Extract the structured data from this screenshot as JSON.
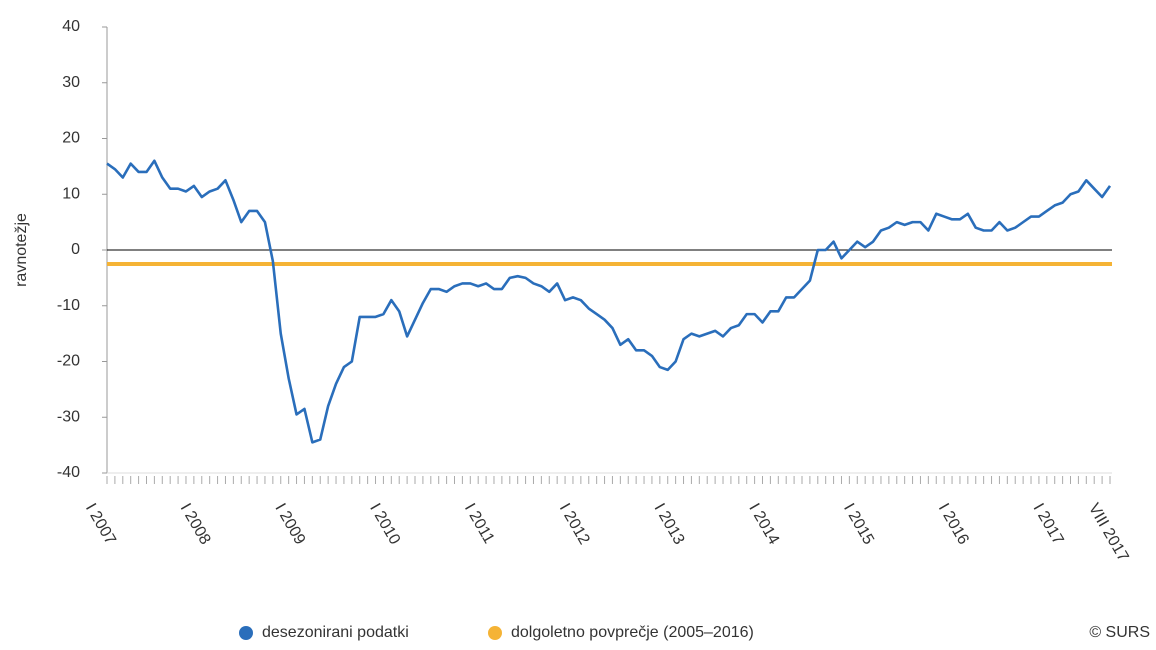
{
  "chart_data": {
    "type": "line",
    "y_label": "ravnotežje",
    "categories": [
      "I 2007",
      null,
      null,
      null,
      null,
      null,
      null,
      null,
      null,
      null,
      null,
      null,
      "I 2008",
      null,
      null,
      null,
      null,
      null,
      null,
      null,
      null,
      null,
      null,
      null,
      "I 2009",
      null,
      null,
      null,
      null,
      null,
      null,
      null,
      null,
      null,
      null,
      null,
      "I 2010",
      null,
      null,
      null,
      null,
      null,
      null,
      null,
      null,
      null,
      null,
      null,
      "I 2011",
      null,
      null,
      null,
      null,
      null,
      null,
      null,
      null,
      null,
      null,
      null,
      "I 2012",
      null,
      null,
      null,
      null,
      null,
      null,
      null,
      null,
      null,
      null,
      null,
      "I 2013",
      null,
      null,
      null,
      null,
      null,
      null,
      null,
      null,
      null,
      null,
      null,
      "I 2014",
      null,
      null,
      null,
      null,
      null,
      null,
      null,
      null,
      null,
      null,
      null,
      "I 2015",
      null,
      null,
      null,
      null,
      null,
      null,
      null,
      null,
      null,
      null,
      null,
      "I 2016",
      null,
      null,
      null,
      null,
      null,
      null,
      null,
      null,
      null,
      null,
      null,
      "I 2017",
      null,
      null,
      null,
      null,
      null,
      null,
      "VIII 2017"
    ],
    "series": [
      {
        "name": "desezonirani podatki",
        "color": "#2a6ebb",
        "values": [
          15.5,
          14.5,
          13,
          15.5,
          14,
          14,
          16,
          13,
          11,
          11,
          10.5,
          11.5,
          9.5,
          10.5,
          11,
          12.5,
          9,
          5,
          7,
          7,
          5,
          -2,
          -15,
          -23,
          -29.5,
          -28.5,
          -34.5,
          -34,
          -28,
          -24,
          -21,
          -20,
          -12,
          -12,
          -12,
          -11.5,
          -9,
          -11,
          -15.5,
          -12.5,
          -9.5,
          -7,
          -7,
          -7.5,
          -6.5,
          -6,
          -6,
          -6.5,
          -6,
          -7,
          -7,
          -5,
          -4.7,
          -5,
          -6,
          -6.5,
          -7.5,
          -6,
          -9,
          -8.5,
          -9,
          -10.5,
          -11.5,
          -12.5,
          -14,
          -17,
          -16,
          -18,
          -18,
          -19,
          -21,
          -21.5,
          -20,
          -16,
          -15,
          -15.5,
          -15,
          -14.5,
          -15.5,
          -14,
          -13.5,
          -11.5,
          -11.5,
          -13,
          -11,
          -11,
          -8.5,
          -8.5,
          -7,
          -5.5,
          0,
          0,
          1.5,
          -1.5,
          0,
          1.5,
          0.5,
          1.5,
          3.5,
          4,
          5,
          4.5,
          5,
          5,
          3.5,
          6.5,
          6,
          5.5,
          5.5,
          6.5,
          4,
          3.5,
          3.5,
          5,
          3.5,
          4,
          5,
          6,
          6,
          7,
          8,
          8.5,
          10,
          10.5,
          12.5,
          11,
          9.5,
          11.5
        ]
      }
    ],
    "reference_line": {
      "name": "dolgoletno povprečje (2005–2016)",
      "value": -2.5,
      "color": "#f5b335"
    },
    "ylim": [
      -40,
      40
    ],
    "yticks": [
      -40,
      -30,
      -20,
      -10,
      0,
      10,
      20,
      30,
      40
    ],
    "source": "© SURS"
  }
}
